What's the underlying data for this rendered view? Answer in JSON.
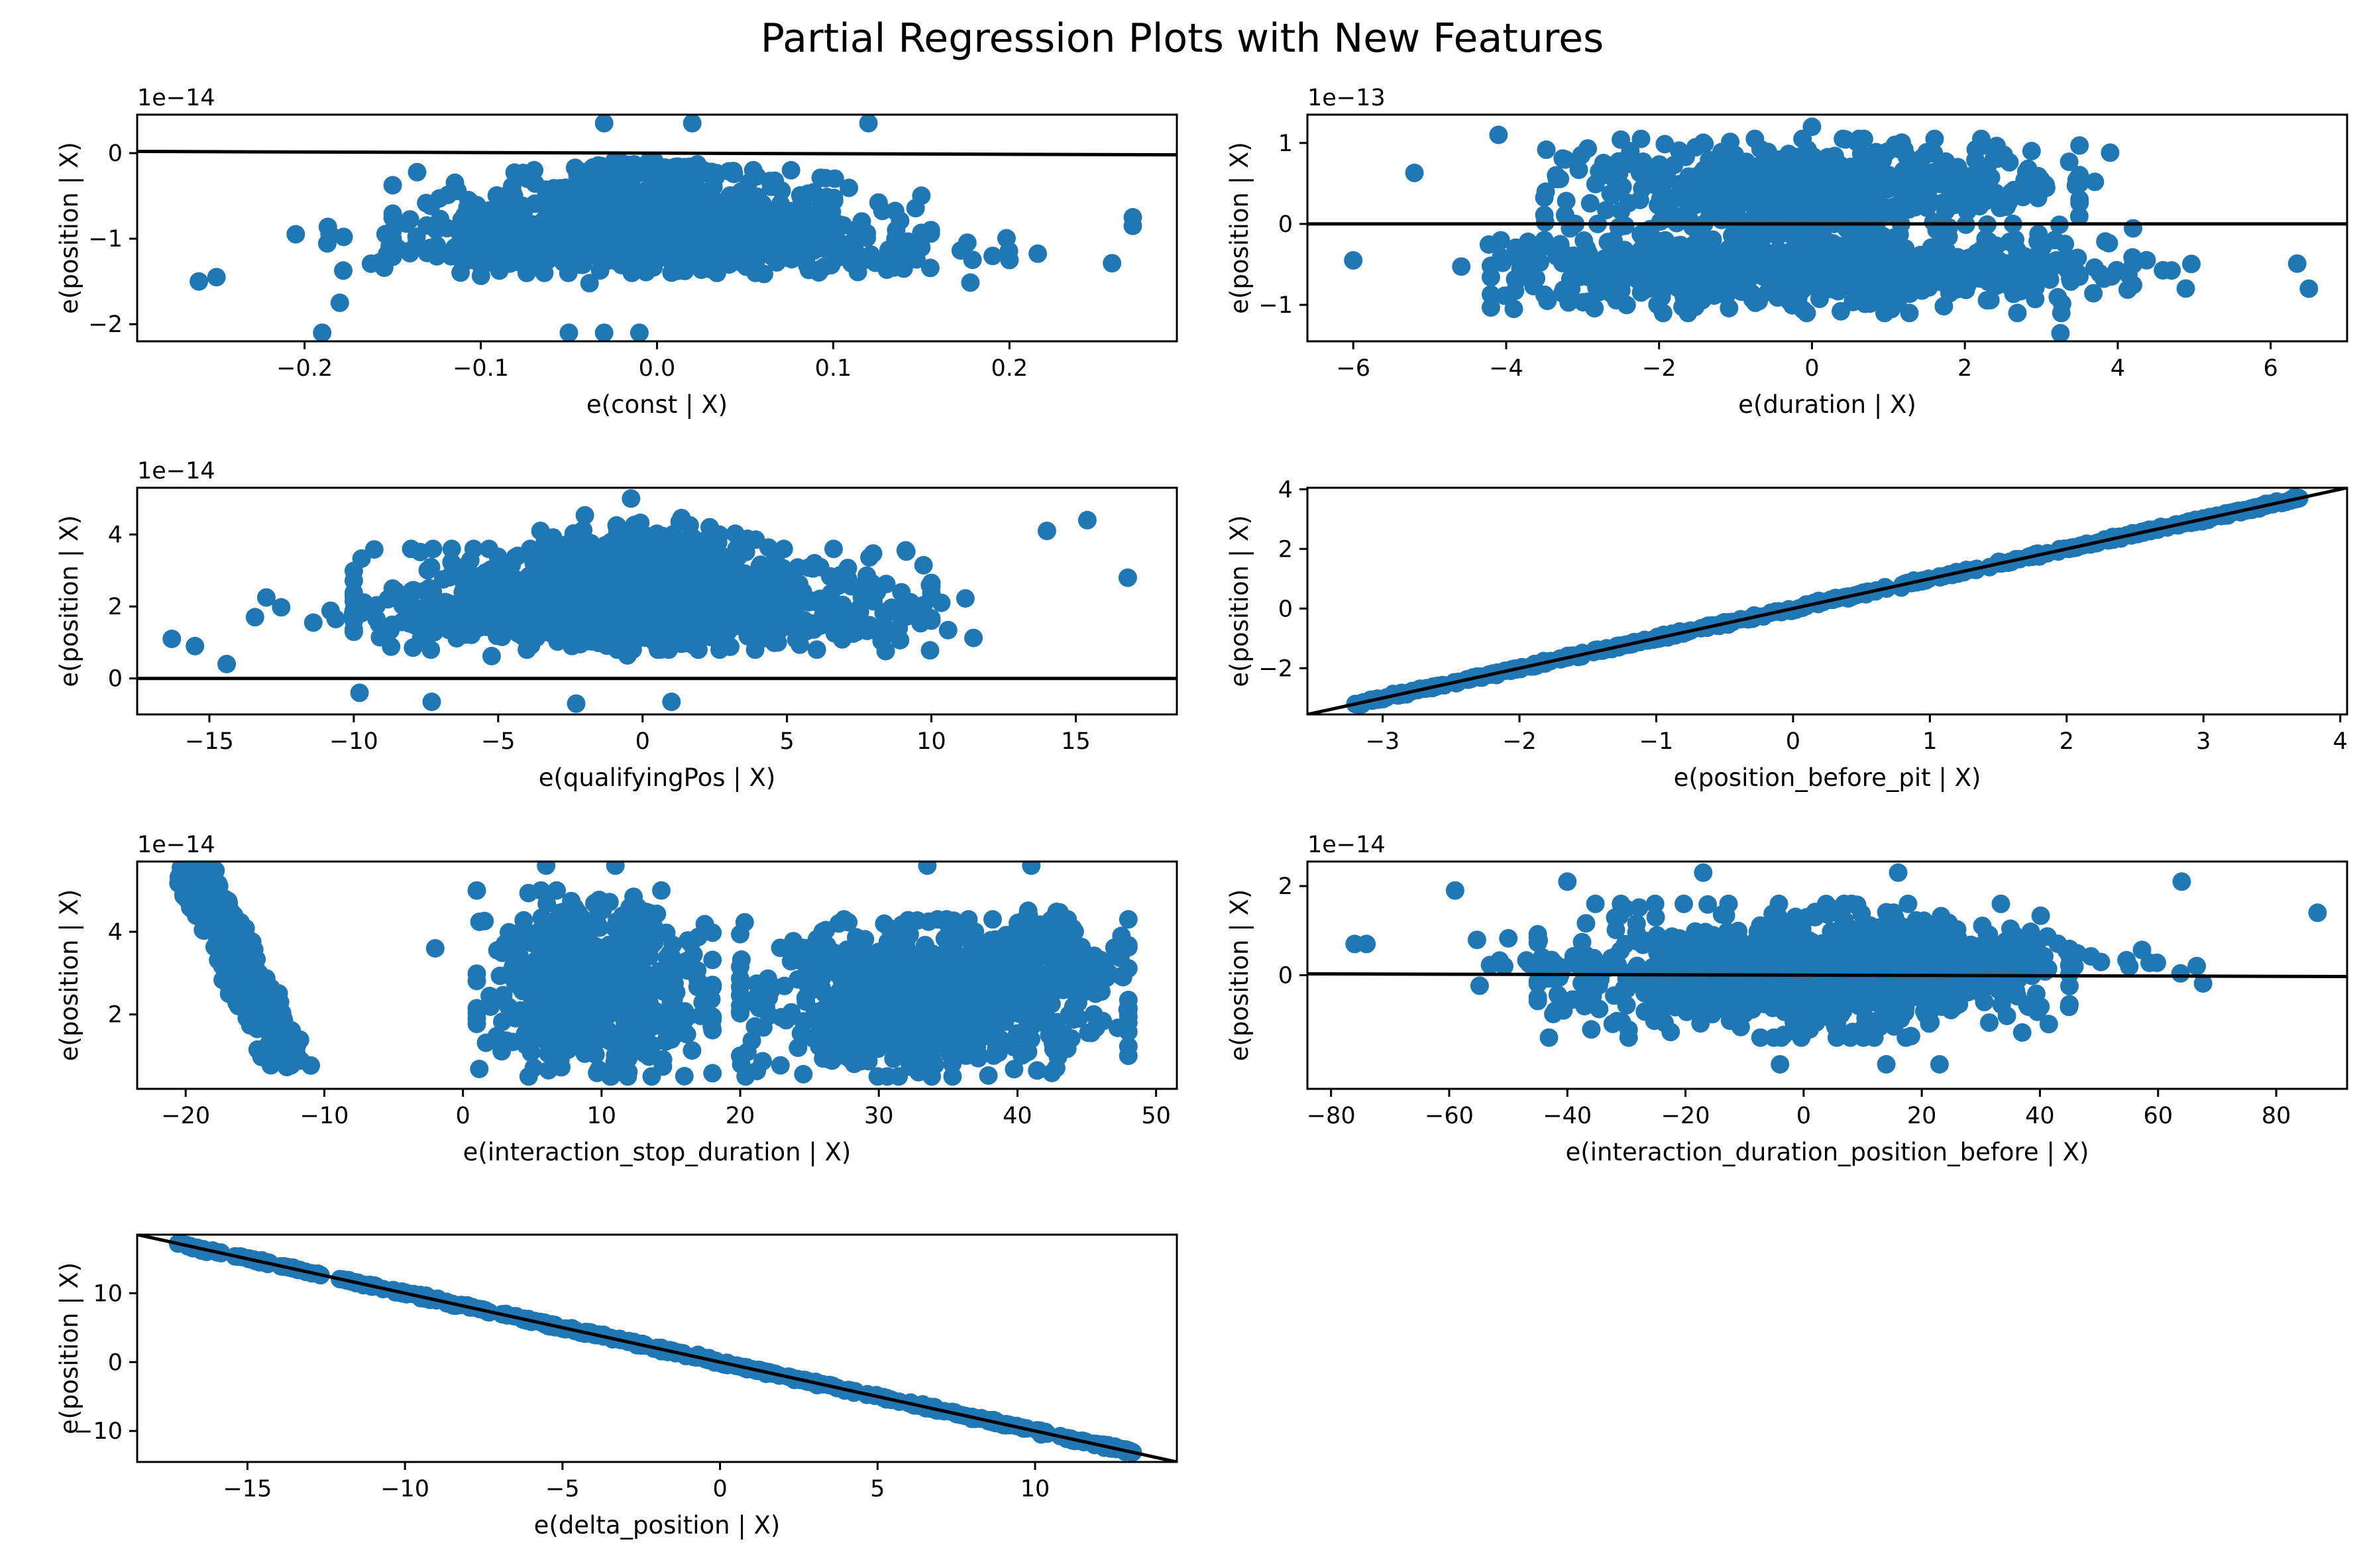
{
  "figure": {
    "title": "Partial Regression Plots with New Features",
    "marker_color": "#1f77b4",
    "line_color": "#000000"
  },
  "chart_data": [
    {
      "type": "scatter",
      "xlabel": "e(const | X)",
      "ylabel": "e(position | X)",
      "y_multiplier": "1e−14",
      "xlim": [
        -0.295,
        0.295
      ],
      "ylim": [
        -2.2,
        0.45
      ],
      "xticks": [
        -0.2,
        -0.1,
        0.0,
        0.1,
        0.2
      ],
      "xtick_labels": [
        "−0.2",
        "−0.1",
        "0.0",
        "0.1",
        "0.2"
      ],
      "yticks": [
        0,
        -1,
        -2
      ],
      "ytick_labels": [
        "0",
        "−1",
        "−2"
      ],
      "fit_line": {
        "x": [
          -0.295,
          0.295
        ],
        "y": [
          0.02,
          -0.02
        ]
      },
      "clusters": [
        {
          "x": [
            -0.27,
            0.27
          ],
          "y": [
            -1.55,
            -0.7
          ],
          "n": 260,
          "spread": 0.35
        },
        {
          "x": [
            -0.15,
            0.15
          ],
          "y": [
            -1.4,
            -0.2
          ],
          "n": 520,
          "spread": 0.45
        },
        {
          "x": [
            -0.1,
            0.1
          ],
          "y": [
            -0.4,
            0.0
          ],
          "n": 120,
          "spread": 0.2
        }
      ],
      "points": [
        {
          "x": -0.26,
          "y": -1.5
        },
        {
          "x": -0.25,
          "y": -1.45
        },
        {
          "x": -0.19,
          "y": -2.1
        },
        {
          "x": -0.18,
          "y": -1.75
        },
        {
          "x": -0.05,
          "y": -2.1
        },
        {
          "x": -0.03,
          "y": -2.1
        },
        {
          "x": -0.01,
          "y": -2.1
        },
        {
          "x": -0.03,
          "y": 0.35
        },
        {
          "x": 0.02,
          "y": 0.35
        },
        {
          "x": 0.12,
          "y": 0.35
        },
        {
          "x": 0.27,
          "y": -0.75
        },
        {
          "x": 0.27,
          "y": -0.85
        },
        {
          "x": 0.2,
          "y": -1.25
        },
        {
          "x": 0.14,
          "y": -1.35
        }
      ]
    },
    {
      "type": "scatter",
      "xlabel": "e(duration | X)",
      "ylabel": "e(position | X)",
      "y_multiplier": "1e−13",
      "xlim": [
        -6.6,
        7.0
      ],
      "ylim": [
        -1.45,
        1.35
      ],
      "xticks": [
        -6,
        -4,
        -2,
        0,
        2,
        4,
        6
      ],
      "xtick_labels": [
        "−6",
        "−4",
        "−2",
        "0",
        "2",
        "4",
        "6"
      ],
      "yticks": [
        1,
        0,
        -1
      ],
      "ytick_labels": [
        "1",
        "0",
        "−1"
      ],
      "fit_line": {
        "x": [
          -6.6,
          7.0
        ],
        "y": [
          0.0,
          0.0
        ]
      },
      "clusters": [
        {
          "x": [
            -3.5,
            3.5
          ],
          "y": [
            -0.2,
            1.05
          ],
          "n": 520,
          "spread": 0.45
        },
        {
          "x": [
            -4.2,
            4.2
          ],
          "y": [
            -1.1,
            0.0
          ],
          "n": 520,
          "spread": 0.45
        },
        {
          "x": [
            -6.0,
            6.5
          ],
          "y": [
            -0.9,
            -0.2
          ],
          "n": 220,
          "spread": 0.35
        }
      ],
      "points": [
        {
          "x": -5.2,
          "y": 0.63
        },
        {
          "x": -4.1,
          "y": 1.1
        },
        {
          "x": -6.0,
          "y": -0.45
        },
        {
          "x": 3.9,
          "y": 0.88
        },
        {
          "x": 3.7,
          "y": 0.52
        },
        {
          "x": 3.25,
          "y": -1.35
        },
        {
          "x": 6.5,
          "y": -0.8
        },
        {
          "x": -3.9,
          "y": -1.05
        },
        {
          "x": 0.0,
          "y": 1.2
        }
      ]
    },
    {
      "type": "scatter",
      "xlabel": "e(qualifyingPos | X)",
      "ylabel": "e(position | X)",
      "y_multiplier": "1e−14",
      "xlim": [
        -17.5,
        18.5
      ],
      "ylim": [
        -1.0,
        5.3
      ],
      "xticks": [
        -15,
        -10,
        -5,
        0,
        5,
        10,
        15
      ],
      "xtick_labels": [
        "−15",
        "−10",
        "−5",
        "0",
        "5",
        "10",
        "15"
      ],
      "yticks": [
        4,
        2,
        0
      ],
      "ytick_labels": [
        "4",
        "2",
        "0"
      ],
      "fit_line": {
        "x": [
          -17.5,
          18.5
        ],
        "y": [
          0.0,
          0.0
        ]
      },
      "clusters": [
        {
          "x": [
            -10,
            10
          ],
          "y": [
            0.8,
            3.6
          ],
          "n": 700,
          "spread": 0.45
        },
        {
          "x": [
            -15,
            14
          ],
          "y": [
            0.5,
            3.0
          ],
          "n": 320,
          "spread": 0.35
        },
        {
          "x": [
            -6,
            6
          ],
          "y": [
            2.5,
            4.8
          ],
          "n": 200,
          "spread": 0.3
        }
      ],
      "points": [
        {
          "x": -16.3,
          "y": 1.1
        },
        {
          "x": -15.5,
          "y": 0.9
        },
        {
          "x": -14.4,
          "y": 0.4
        },
        {
          "x": 16.8,
          "y": 2.8
        },
        {
          "x": 15.4,
          "y": 4.4
        },
        {
          "x": 14.0,
          "y": 4.1
        },
        {
          "x": -9.8,
          "y": -0.4
        },
        {
          "x": -2.3,
          "y": -0.7
        },
        {
          "x": 1.0,
          "y": -0.65
        },
        {
          "x": -7.3,
          "y": -0.65
        },
        {
          "x": -0.4,
          "y": 5.0
        }
      ]
    },
    {
      "type": "scatter",
      "xlabel": "e(position_before_pit | X)",
      "ylabel": "e(position | X)",
      "y_multiplier": "",
      "xlim": [
        -3.55,
        4.05
      ],
      "ylim": [
        -3.55,
        4.05
      ],
      "xticks": [
        -3,
        -2,
        -1,
        0,
        1,
        2,
        3,
        4
      ],
      "xtick_labels": [
        "−3",
        "−2",
        "−1",
        "0",
        "1",
        "2",
        "3",
        "4"
      ],
      "yticks": [
        4,
        2,
        0,
        -2
      ],
      "ytick_labels": [
        "4",
        "2",
        "0",
        "−2"
      ],
      "fit_line": {
        "x": [
          -3.55,
          4.05
        ],
        "y": [
          -3.55,
          4.05
        ]
      },
      "linear_band": {
        "x_range": [
          -3.2,
          3.7
        ],
        "slope": 1.0,
        "intercept": 0.0,
        "noise": 0.03,
        "n": 360
      },
      "points": [
        {
          "x": -3.2,
          "y": -3.2
        },
        {
          "x": -2.85,
          "y": -2.85
        },
        {
          "x": 2.8,
          "y": 2.8
        },
        {
          "x": 2.9,
          "y": 2.9
        },
        {
          "x": 3.3,
          "y": 3.3
        },
        {
          "x": 3.7,
          "y": 3.7
        }
      ]
    },
    {
      "type": "scatter",
      "xlabel": "e(interaction_stop_duration | X)",
      "ylabel": "e(position | X)",
      "y_multiplier": "1e−14",
      "xlim": [
        -23.5,
        51.5
      ],
      "ylim": [
        0.2,
        5.7
      ],
      "xticks": [
        -20,
        -10,
        0,
        10,
        20,
        30,
        40,
        50
      ],
      "xtick_labels": [
        "−20",
        "−10",
        "0",
        "10",
        "20",
        "30",
        "40",
        "50"
      ],
      "yticks": [
        4,
        2
      ],
      "ytick_labels": [
        "4",
        "2"
      ],
      "fit_line": null,
      "diagonal_band": {
        "x0": -19.5,
        "y0": 5.5,
        "x1": -12.5,
        "y1": 0.8,
        "width": 1.6,
        "n": 320
      },
      "clusters": [
        {
          "x": [
            1,
            18
          ],
          "y": [
            0.5,
            5.0
          ],
          "n": 620,
          "spread": 0.45
        },
        {
          "x": [
            20,
            48
          ],
          "y": [
            0.5,
            4.3
          ],
          "n": 780,
          "spread": 0.45
        },
        {
          "x": [
            39,
            46
          ],
          "y": [
            3.0,
            4.8
          ],
          "n": 80,
          "spread": 0.3
        }
      ],
      "points": [
        {
          "x": -2.0,
          "y": 3.6
        },
        {
          "x": 6.0,
          "y": 5.6
        },
        {
          "x": 11.0,
          "y": 5.6
        },
        {
          "x": 33.5,
          "y": 5.6
        },
        {
          "x": 41.0,
          "y": 5.6
        },
        {
          "x": 47.5,
          "y": 3.9
        },
        {
          "x": 48.0,
          "y": 1.0
        },
        {
          "x": 48.0,
          "y": 1.8
        }
      ]
    },
    {
      "type": "scatter",
      "xlabel": "e(interaction_duration_position_before | X)",
      "ylabel": "e(position | X)",
      "y_multiplier": "1e−14",
      "xlim": [
        -84,
        92
      ],
      "ylim": [
        -2.55,
        2.55
      ],
      "xticks": [
        -80,
        -60,
        -40,
        -20,
        0,
        20,
        40,
        60,
        80
      ],
      "xtick_labels": [
        "−80",
        "−60",
        "−40",
        "−20",
        "0",
        "20",
        "40",
        "60",
        "80"
      ],
      "yticks": [
        2,
        0
      ],
      "ytick_labels": [
        "2",
        "0"
      ],
      "fit_line": {
        "x": [
          -84,
          92
        ],
        "y": [
          0.03,
          -0.03
        ]
      },
      "clusters": [
        {
          "x": [
            -45,
            45
          ],
          "y": [
            -1.4,
            1.6
          ],
          "n": 820,
          "spread": 0.45
        },
        {
          "x": [
            -66,
            72
          ],
          "y": [
            -0.6,
            1.0
          ],
          "n": 280,
          "spread": 0.35
        }
      ],
      "points": [
        {
          "x": -76,
          "y": 0.7
        },
        {
          "x": -74,
          "y": 0.7
        },
        {
          "x": 87,
          "y": 1.4
        },
        {
          "x": -59,
          "y": 1.9
        },
        {
          "x": -40,
          "y": 2.1
        },
        {
          "x": -17,
          "y": 2.3
        },
        {
          "x": 16,
          "y": 2.3
        },
        {
          "x": 64,
          "y": 2.1
        },
        {
          "x": -4,
          "y": -2.0
        },
        {
          "x": 14,
          "y": -2.0
        },
        {
          "x": 23,
          "y": -2.0
        }
      ]
    },
    {
      "type": "scatter",
      "xlabel": "e(delta_position | X)",
      "ylabel": "e(position | X)",
      "y_multiplier": "",
      "xlim": [
        -18.5,
        14.5
      ],
      "ylim": [
        -14.5,
        18.5
      ],
      "xticks": [
        -15,
        -10,
        -5,
        0,
        5,
        10
      ],
      "xtick_labels": [
        "−15",
        "−10",
        "−5",
        "0",
        "5",
        "10"
      ],
      "yticks": [
        10,
        0,
        -10
      ],
      "ytick_labels": [
        "10",
        "0",
        "−10"
      ],
      "fit_line": {
        "x": [
          -18.5,
          14.5
        ],
        "y": [
          18.5,
          -14.5
        ]
      },
      "linear_band": {
        "x_range": [
          -17.2,
          13.2
        ],
        "slope": -1.0,
        "intercept": 0.0,
        "noise": 0.12,
        "n": 380
      },
      "points": [
        {
          "x": -17.2,
          "y": 17.2
        },
        {
          "x": -16.6,
          "y": 16.6
        },
        {
          "x": -15.3,
          "y": 15.3
        },
        {
          "x": -14.8,
          "y": 14.8
        },
        {
          "x": 11.5,
          "y": -11.5
        },
        {
          "x": 12.5,
          "y": -12.5
        },
        {
          "x": 13.1,
          "y": -13.1
        }
      ]
    }
  ]
}
